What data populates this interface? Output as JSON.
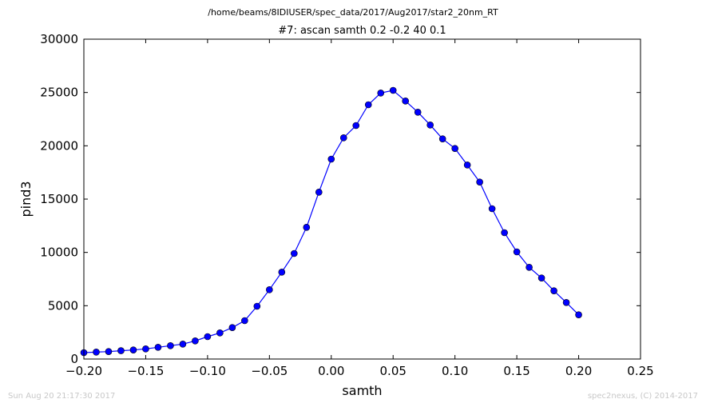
{
  "figure": {
    "suptitle": "/home/beams/8IDIUSER/spec_data/2017/Aug2017/star2_20nm_RT",
    "footer_left": "Sun Aug 20 21:17:30 2017",
    "footer_right": "spec2nexus, (C) 2014-2017"
  },
  "chart_data": {
    "type": "line",
    "title": "#7: ascan  samth 0.2 -0.2  40 0.1",
    "xlabel": "samth",
    "ylabel": "pind3",
    "xlim": [
      -0.2,
      0.25
    ],
    "ylim": [
      0,
      30000
    ],
    "xticks": [
      "−0.20",
      "−0.15",
      "−0.10",
      "−0.05",
      "0.00",
      "0.05",
      "0.10",
      "0.15",
      "0.20",
      "0.25"
    ],
    "yticks": [
      "0",
      "5000",
      "10000",
      "15000",
      "20000",
      "25000",
      "30000"
    ],
    "grid": false,
    "line_color": "#0000ff",
    "marker_color": "#0000ff",
    "marker_edge_color": "#000000",
    "series": [
      {
        "x": [
          -0.2,
          -0.19,
          -0.18,
          -0.17,
          -0.16,
          -0.15,
          -0.14,
          -0.13,
          -0.12,
          -0.11,
          -0.1,
          -0.09,
          -0.08,
          -0.07,
          -0.06,
          -0.05,
          -0.04,
          -0.03,
          -0.02,
          -0.01,
          0.0,
          0.01,
          0.02,
          0.03,
          0.04,
          0.05,
          0.06,
          0.07,
          0.08,
          0.09,
          0.1,
          0.11,
          0.12,
          0.13,
          0.14,
          0.15,
          0.16,
          0.17,
          0.18,
          0.19,
          0.2
        ],
        "values": [
          600,
          650,
          700,
          780,
          850,
          950,
          1100,
          1250,
          1400,
          1700,
          2100,
          2450,
          2950,
          3600,
          4950,
          6500,
          8150,
          9900,
          12350,
          15650,
          18750,
          20750,
          21900,
          23850,
          24950,
          25200,
          24200,
          23150,
          21950,
          20650,
          19750,
          18200,
          16600,
          14100,
          11850,
          10050,
          8600,
          7600,
          6400,
          5300,
          4150
        ]
      }
    ]
  }
}
